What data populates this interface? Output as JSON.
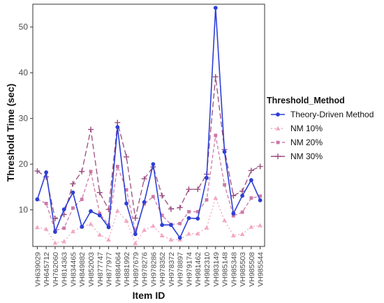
{
  "chart_data": {
    "type": "line",
    "xlabel": "Item ID",
    "ylabel": "Threshold Time (sec)",
    "ylim": [
      2,
      55
    ],
    "yticks": [
      10,
      20,
      30,
      40,
      50
    ],
    "grid": false,
    "legend_position": "right",
    "legend_title": "Threshold_Method",
    "categories": [
      "VH639029",
      "VH645712",
      "VH762060",
      "VH814363",
      "VH834465",
      "VH849882",
      "VH852003",
      "VH877747",
      "VH877977",
      "VH884064",
      "VH881992",
      "VH897679",
      "VH978276",
      "VH978286",
      "VH978352",
      "VH978372",
      "VH978897",
      "VH979174",
      "VH981462",
      "VH982310",
      "VH983149",
      "VH985148",
      "VH985348",
      "VH985503",
      "VH985508",
      "VH985544"
    ],
    "series": [
      {
        "name": "Theory-Driven Method",
        "color": "#2d3fd6",
        "line": "solid",
        "marker": "circle",
        "values": [
          12.3,
          18.2,
          5.2,
          10.1,
          13.8,
          6.3,
          9.7,
          8.8,
          6.2,
          28.1,
          11.4,
          4.7,
          11.7,
          20.0,
          6.7,
          6.7,
          3.9,
          8.2,
          8.1,
          17.0,
          54.2,
          22.7,
          9.2,
          13.1,
          16.5,
          12.1
        ]
      },
      {
        "name": "NM 10%",
        "color": "#f2a7c4",
        "line": "dotted",
        "marker": "triangle",
        "values": [
          6.2,
          5.8,
          2.8,
          3.1,
          5.3,
          6.3,
          6.9,
          4.6,
          3.5,
          9.8,
          7.6,
          2.7,
          5.6,
          6.5,
          4.4,
          3.5,
          3.5,
          4.8,
          4.8,
          6.1,
          12.6,
          7.7,
          4.4,
          4.7,
          6.3,
          6.6
        ]
      },
      {
        "name": "NM 20%",
        "color": "#cc79a7",
        "line": "dashed",
        "marker": "square",
        "values": [
          12.3,
          11.4,
          5.5,
          6.0,
          10.4,
          12.3,
          18.4,
          9.2,
          6.7,
          19.5,
          14.4,
          5.4,
          11.3,
          12.9,
          8.8,
          6.8,
          7.0,
          9.6,
          9.6,
          12.2,
          26.3,
          15.5,
          8.7,
          9.5,
          12.6,
          13.0
        ]
      },
      {
        "name": "NM 30%",
        "color": "#9a4d7e",
        "line": "longdash",
        "marker": "plus",
        "values": [
          18.5,
          17.2,
          8.1,
          9.0,
          15.7,
          18.4,
          27.6,
          13.8,
          10.1,
          29.1,
          21.6,
          8.2,
          16.8,
          19.4,
          13.1,
          10.2,
          10.5,
          14.5,
          14.5,
          17.8,
          39.1,
          23.2,
          13.1,
          14.1,
          18.6,
          19.5
        ]
      }
    ]
  }
}
